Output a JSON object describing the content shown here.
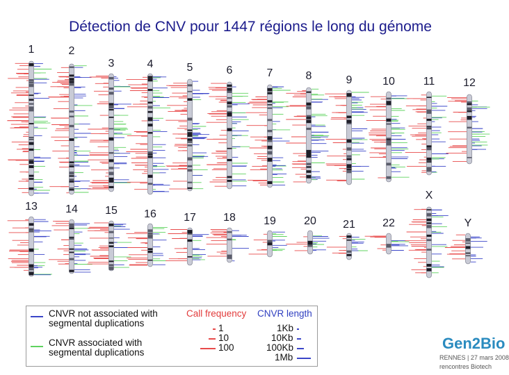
{
  "title": "Détection de CNV pour 1447 régions le long du génome",
  "chromosomes": [
    {
      "id": "1"
    },
    {
      "id": "2"
    },
    {
      "id": "3"
    },
    {
      "id": "4"
    },
    {
      "id": "5"
    },
    {
      "id": "6"
    },
    {
      "id": "7"
    },
    {
      "id": "8"
    },
    {
      "id": "9"
    },
    {
      "id": "10"
    },
    {
      "id": "11"
    },
    {
      "id": "12"
    },
    {
      "id": "13"
    },
    {
      "id": "14"
    },
    {
      "id": "15"
    },
    {
      "id": "16"
    },
    {
      "id": "17"
    },
    {
      "id": "18"
    },
    {
      "id": "19"
    },
    {
      "id": "20"
    },
    {
      "id": "21"
    },
    {
      "id": "22"
    },
    {
      "id": "X"
    },
    {
      "id": "Y"
    }
  ],
  "legend": {
    "not_associated_line1": "CNVR not associated with",
    "not_associated_line2": "segmental duplications",
    "associated_line1": "CNVR associated with",
    "associated_line2": "segmental duplications",
    "call_frequency_header": "Call frequency",
    "cnvr_length_header": "CNVR length",
    "freq_1": "1",
    "freq_10": "10",
    "freq_100": "100",
    "len_1kb": "1Kb",
    "len_10kb": "10Kb",
    "len_100kb": "100Kb",
    "len_1mb": "1Mb"
  },
  "colors": {
    "title": "#1c1c8c",
    "not_associated": "#3a45c8",
    "associated": "#5fd35f",
    "call_frequency": "#e84a4a"
  },
  "logo": {
    "name": "Gen2Bio",
    "line1": "RENNES | 27 mars 2008",
    "line2": "rencontres Biotech"
  }
}
